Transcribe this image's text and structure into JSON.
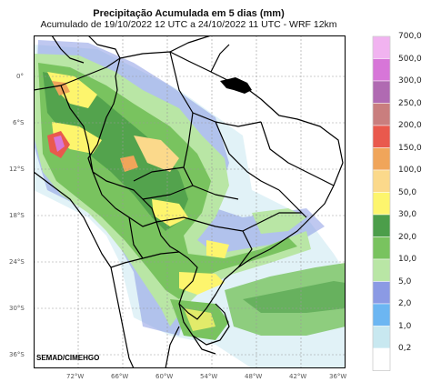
{
  "title": "Precipitação Acumulada em 5 dias (mm)",
  "subtitle": "Acumulado de 19/10/2022 12 UTC a 24/10/2022 11 UTC - WRF 12km",
  "credit": "SEMAD/CIMEHGO",
  "lat_ticks": [
    "0°",
    "6°S",
    "12°S",
    "18°S",
    "24°S",
    "30°S",
    "36°S"
  ],
  "lon_ticks": [
    "72°W",
    "66°W",
    "60°W",
    "54°W",
    "48°W",
    "42°W",
    "36°W"
  ],
  "legend": {
    "labels": [
      "700,0",
      "500,0",
      "300,0",
      "250,0",
      "200,0",
      "150,0",
      "100,0",
      "50,0",
      "30,0",
      "20,0",
      "10,0",
      "5,0",
      "2,0",
      "1,0",
      "0,2"
    ],
    "colors": [
      "#f1b3f0",
      "#d776d8",
      "#b06ab2",
      "#c97e7e",
      "#e9594d",
      "#f0a55a",
      "#fbd98b",
      "#fdf56d",
      "#4c9e4a",
      "#79c35f",
      "#b9e6a5",
      "#8b9ae4",
      "#6cb6f2",
      "#c8e8f0",
      "#ffffff"
    ]
  },
  "colors": {
    "land": "#ffffff",
    "ocean": "#ffffff",
    "border": "#000000",
    "grid": "#999999"
  }
}
